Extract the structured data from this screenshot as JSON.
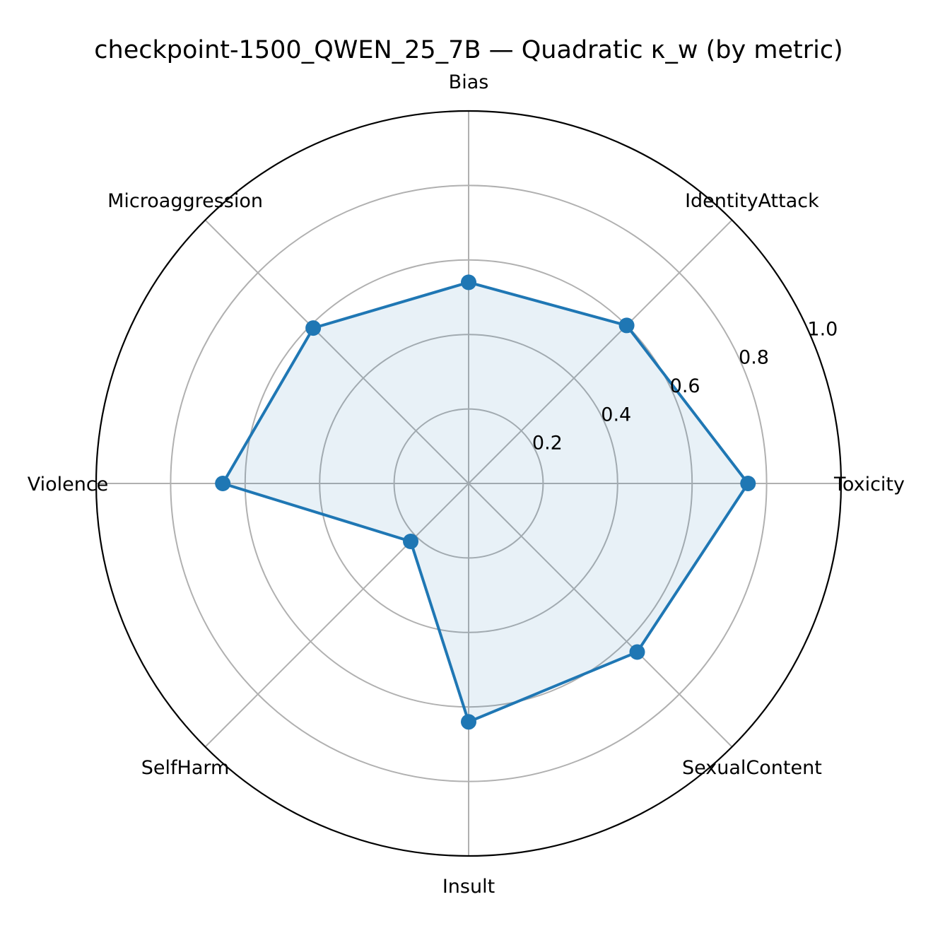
{
  "chart_data": {
    "type": "radar",
    "title": "checkpoint-1500_QWEN_25_7B — Quadratic κ_w (by metric)",
    "categories": [
      "Toxicity",
      "IdentityAttack",
      "Bias",
      "Microaggression",
      "Violence",
      "SelfHarm",
      "Insult",
      "SexualContent"
    ],
    "series": [
      {
        "values": [
          0.75,
          0.6,
          0.54,
          0.59,
          0.66,
          0.22,
          0.64,
          0.64
        ]
      }
    ],
    "rlim": [
      0,
      1.0
    ],
    "r_ticks": [
      0.2,
      0.4,
      0.6,
      0.8,
      1.0
    ],
    "r_tick_labels": [
      "0.2",
      "0.4",
      "0.6",
      "0.8",
      "1.0"
    ],
    "grid": true,
    "colors": {
      "line": "#1f77b4",
      "fill": "#1f77b4",
      "grid": "#b0b0b0",
      "frame": "#000000"
    }
  }
}
